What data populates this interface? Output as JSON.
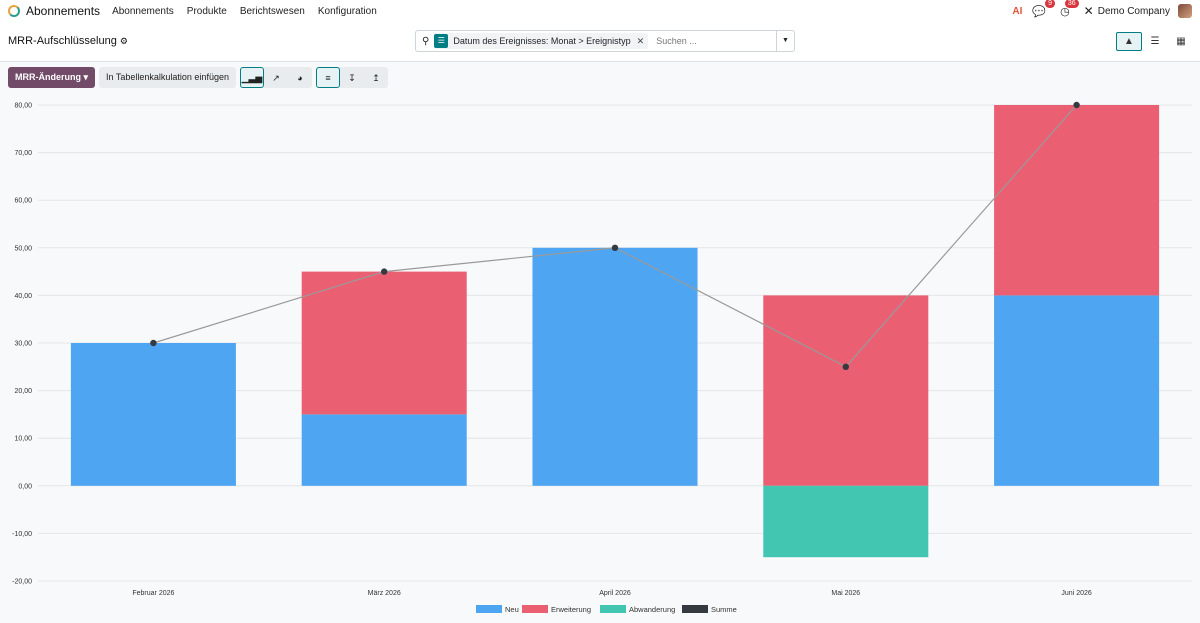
{
  "navbar": {
    "app_name": "Abonnements",
    "menu": [
      "Abonnements",
      "Produkte",
      "Berichtswesen",
      "Konfiguration"
    ],
    "ai_label": "AI",
    "messages_count": "9",
    "activities_count": "36",
    "company": "Demo Company"
  },
  "control_panel": {
    "title": "MRR-Aufschlüsselung",
    "facet_label": "Datum des Ereignisses: Monat > Ereignistyp",
    "search_placeholder": "Suchen ..."
  },
  "toolbar": {
    "measure_label": "MRR-Änderung",
    "insert_label": "In Tabellenkalkulation einfügen"
  },
  "chart_data": {
    "type": "bar",
    "stacked": true,
    "categories": [
      "Februar 2026",
      "März 2026",
      "April 2026",
      "Mai 2026",
      "Juni 2026"
    ],
    "series": [
      {
        "name": "Neu",
        "color": "#4ea5f2",
        "values": [
          30,
          15,
          50,
          0,
          40
        ]
      },
      {
        "name": "Erweiterung",
        "color": "#eb5f73",
        "values": [
          0,
          30,
          0,
          40,
          40
        ]
      },
      {
        "name": "Abwanderung",
        "color": "#42c6b1",
        "values": [
          0,
          0,
          0,
          -15,
          0
        ]
      },
      {
        "name": "Summe",
        "color": "#343a40",
        "type": "line",
        "values": [
          30,
          45,
          50,
          25,
          80
        ]
      }
    ],
    "ylim": [
      -20,
      80
    ],
    "yticks": [
      "-20,00",
      "-10,00",
      "0,00",
      "10,00",
      "20,00",
      "30,00",
      "40,00",
      "50,00",
      "60,00",
      "70,00",
      "80,00"
    ],
    "grid": true,
    "legend_position": "bottom"
  }
}
